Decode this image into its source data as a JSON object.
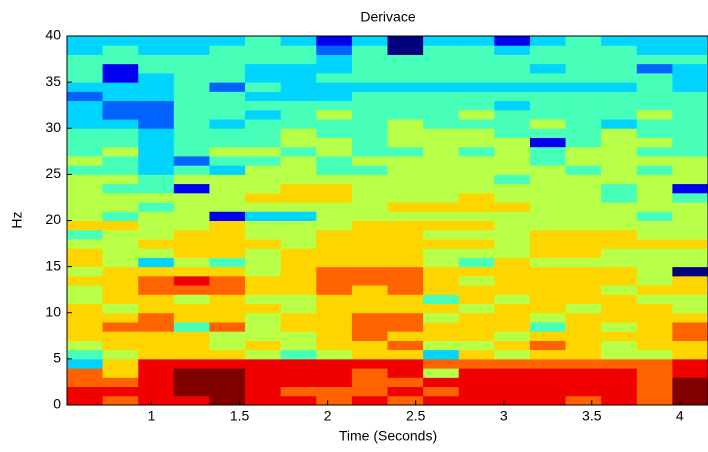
{
  "chart_data": {
    "type": "heatmap",
    "title": "Derivace",
    "x_label": "Time (Seconds)",
    "y_label": "Hz",
    "xlim": [
      0.52,
      4.16
    ],
    "ylim": [
      0,
      40
    ],
    "xticks": [
      1,
      1.5,
      2,
      2.5,
      3,
      3.5,
      4
    ],
    "yticks": [
      0,
      5,
      10,
      15,
      20,
      25,
      30,
      35,
      40
    ],
    "colormap": "jet",
    "clim": [
      0,
      9
    ],
    "z": [
      [
        8,
        7,
        8,
        8,
        9,
        8,
        8,
        7,
        8,
        7,
        8,
        8,
        8,
        8,
        7,
        8,
        7,
        9
      ],
      [
        8,
        8,
        8,
        9,
        9,
        8,
        7,
        7,
        7,
        8,
        7,
        8,
        8,
        8,
        8,
        8,
        7,
        9
      ],
      [
        7,
        7,
        8,
        9,
        9,
        8,
        8,
        8,
        7,
        7,
        8,
        8,
        8,
        8,
        8,
        8,
        7,
        9
      ],
      [
        7,
        6,
        8,
        9,
        9,
        8,
        8,
        8,
        7,
        8,
        5,
        8,
        8,
        8,
        8,
        8,
        7,
        8
      ],
      [
        3,
        6,
        8,
        8,
        8,
        8,
        8,
        8,
        8,
        8,
        7,
        7,
        7,
        7,
        7,
        7,
        7,
        8
      ],
      [
        4,
        5,
        6,
        6,
        6,
        5,
        4,
        5,
        6,
        6,
        3,
        6,
        5,
        6,
        6,
        5,
        5,
        6
      ],
      [
        5,
        6,
        6,
        6,
        5,
        6,
        5,
        6,
        6,
        7,
        5,
        5,
        6,
        7,
        6,
        5,
        6,
        6
      ],
      [
        6,
        6,
        6,
        6,
        5,
        5,
        5,
        6,
        7,
        6,
        6,
        6,
        5,
        6,
        6,
        6,
        6,
        7
      ],
      [
        6,
        7,
        7,
        4,
        7,
        5,
        6,
        6,
        7,
        7,
        6,
        6,
        6,
        4,
        6,
        5,
        6,
        7
      ],
      [
        6,
        6,
        7,
        6,
        6,
        5,
        6,
        6,
        7,
        7,
        5,
        6,
        6,
        5,
        6,
        6,
        6,
        6
      ],
      [
        6,
        5,
        6,
        6,
        6,
        6,
        5,
        6,
        6,
        6,
        6,
        5,
        6,
        6,
        5,
        6,
        6,
        5
      ],
      [
        5,
        6,
        6,
        5,
        6,
        5,
        5,
        6,
        6,
        6,
        4,
        6,
        5,
        6,
        6,
        6,
        5,
        5
      ],
      [
        5,
        6,
        7,
        7,
        7,
        6,
        6,
        7,
        6,
        7,
        6,
        6,
        6,
        6,
        6,
        5,
        6,
        6
      ],
      [
        6,
        6,
        7,
        8,
        7,
        6,
        6,
        7,
        7,
        7,
        6,
        5,
        6,
        6,
        6,
        6,
        5,
        6
      ],
      [
        5,
        6,
        6,
        6,
        6,
        5,
        6,
        7,
        7,
        7,
        6,
        6,
        6,
        6,
        6,
        6,
        5,
        0
      ],
      [
        6,
        5,
        3,
        5,
        4,
        5,
        6,
        6,
        6,
        6,
        5,
        4,
        6,
        5,
        5,
        5,
        5,
        5
      ],
      [
        6,
        5,
        5,
        6,
        6,
        5,
        6,
        6,
        6,
        6,
        5,
        5,
        5,
        6,
        6,
        5,
        5,
        5
      ],
      [
        5,
        5,
        6,
        6,
        6,
        6,
        5,
        6,
        6,
        6,
        6,
        6,
        5,
        6,
        6,
        6,
        6,
        6
      ],
      [
        4,
        5,
        5,
        6,
        6,
        5,
        5,
        6,
        6,
        6,
        5,
        5,
        5,
        6,
        6,
        6,
        5,
        5
      ],
      [
        6,
        6,
        5,
        5,
        6,
        5,
        5,
        5,
        6,
        6,
        6,
        6,
        5,
        5,
        5,
        5,
        5,
        5
      ],
      [
        5,
        4,
        5,
        5,
        1,
        3,
        3,
        5,
        5,
        5,
        5,
        5,
        5,
        5,
        5,
        5,
        4,
        5
      ],
      [
        5,
        5,
        4,
        5,
        5,
        5,
        5,
        5,
        5,
        6,
        6,
        6,
        6,
        5,
        5,
        5,
        5,
        5
      ],
      [
        5,
        5,
        5,
        5,
        5,
        6,
        6,
        6,
        5,
        5,
        5,
        6,
        5,
        5,
        5,
        4,
        5,
        4
      ],
      [
        5,
        4,
        4,
        1,
        5,
        5,
        6,
        6,
        5,
        5,
        5,
        5,
        5,
        5,
        5,
        4,
        5,
        1
      ],
      [
        5,
        5,
        4,
        5,
        5,
        5,
        5,
        5,
        5,
        5,
        5,
        5,
        4,
        5,
        5,
        5,
        5,
        5
      ],
      [
        4,
        4,
        3,
        4,
        3,
        5,
        5,
        4,
        4,
        5,
        5,
        5,
        5,
        5,
        4,
        5,
        4,
        5
      ],
      [
        5,
        4,
        3,
        2,
        4,
        4,
        5,
        4,
        5,
        5,
        5,
        5,
        5,
        4,
        5,
        5,
        5,
        5
      ],
      [
        4,
        5,
        3,
        4,
        5,
        5,
        4,
        5,
        4,
        4,
        5,
        4,
        5,
        4,
        5,
        5,
        4,
        4
      ],
      [
        4,
        4,
        3,
        4,
        4,
        4,
        5,
        5,
        4,
        5,
        5,
        5,
        5,
        1,
        4,
        5,
        5,
        4
      ],
      [
        4,
        4,
        3,
        4,
        4,
        4,
        5,
        4,
        4,
        5,
        5,
        5,
        4,
        4,
        4,
        5,
        4,
        4
      ],
      [
        3,
        3,
        2,
        4,
        3,
        4,
        4,
        4,
        4,
        5,
        4,
        4,
        4,
        5,
        4,
        3,
        4,
        4
      ],
      [
        3,
        2,
        2,
        4,
        4,
        3,
        4,
        5,
        4,
        4,
        4,
        5,
        4,
        4,
        4,
        4,
        5,
        4
      ],
      [
        3,
        2,
        2,
        4,
        4,
        4,
        4,
        4,
        4,
        4,
        4,
        4,
        3,
        4,
        4,
        4,
        4,
        4
      ],
      [
        2,
        3,
        3,
        4,
        4,
        3,
        3,
        3,
        4,
        4,
        4,
        4,
        4,
        4,
        4,
        4,
        4,
        4
      ],
      [
        3,
        3,
        3,
        4,
        2,
        4,
        3,
        3,
        3,
        3,
        3,
        3,
        3,
        3,
        3,
        3,
        4,
        3
      ],
      [
        4,
        1,
        3,
        4,
        4,
        3,
        3,
        4,
        4,
        4,
        4,
        4,
        4,
        4,
        4,
        4,
        4,
        3
      ],
      [
        4,
        1,
        4,
        4,
        4,
        3,
        3,
        3,
        4,
        4,
        4,
        4,
        4,
        3,
        4,
        4,
        2,
        3
      ],
      [
        4,
        4,
        4,
        4,
        4,
        4,
        4,
        3,
        4,
        4,
        4,
        4,
        4,
        4,
        4,
        4,
        4,
        4
      ],
      [
        3,
        4,
        3,
        3,
        4,
        4,
        4,
        2,
        4,
        0,
        4,
        4,
        3,
        4,
        4,
        4,
        3,
        3
      ],
      [
        3,
        3,
        3,
        3,
        3,
        4,
        3,
        1,
        3,
        0,
        3,
        3,
        1,
        3,
        4,
        3,
        3,
        3
      ]
    ]
  }
}
